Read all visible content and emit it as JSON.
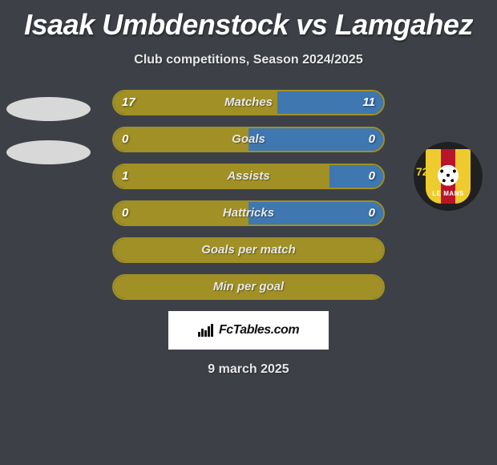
{
  "title": "Isaak Umbdenstock vs Lamgahez",
  "subtitle": "Club competitions, Season 2024/2025",
  "date": "9 march 2025",
  "badge_text": "FcTables.com",
  "crest": {
    "number": "72",
    "text": "LE MANS"
  },
  "colors": {
    "left": "#a09025",
    "right": "#3f77b0",
    "border": "#a09025",
    "avatar": "#d8d8d8"
  },
  "rows": [
    {
      "label": "Matches",
      "left": "17",
      "right": "11",
      "left_pct": 60.7,
      "right_pct": 39.3
    },
    {
      "label": "Goals",
      "left": "0",
      "right": "0",
      "left_pct": 50,
      "right_pct": 50
    },
    {
      "label": "Assists",
      "left": "1",
      "right": "0",
      "left_pct": 80,
      "right_pct": 20
    },
    {
      "label": "Hattricks",
      "left": "0",
      "right": "0",
      "left_pct": 50,
      "right_pct": 50
    },
    {
      "label": "Goals per match",
      "left": "",
      "right": "",
      "left_pct": 100,
      "right_pct": 0
    },
    {
      "label": "Min per goal",
      "left": "",
      "right": "",
      "left_pct": 100,
      "right_pct": 0
    }
  ]
}
